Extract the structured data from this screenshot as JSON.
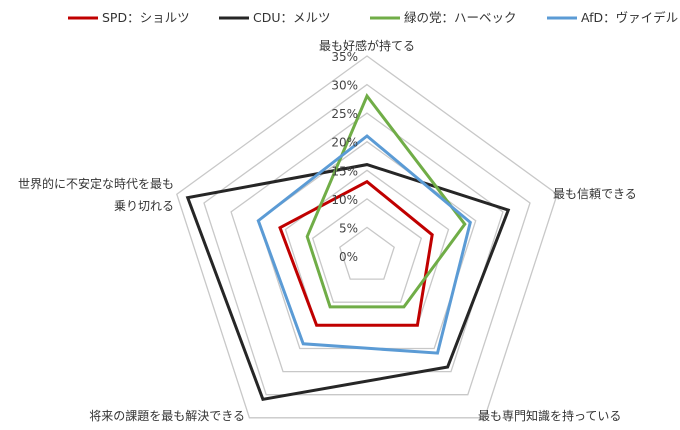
{
  "chart_data": {
    "type": "radar",
    "axes": [
      [
        "最も好感が持てる"
      ],
      [
        "最も信頼できる"
      ],
      [
        "最も専門知識を持っている"
      ],
      [
        "将来の課題を最も解決できる"
      ],
      [
        "世界的に不安定な時代を最も",
        "乗り切れる"
      ]
    ],
    "rlim": [
      0,
      35
    ],
    "ticks": [
      "0%",
      "5%",
      "10%",
      "15%",
      "20%",
      "25%",
      "30%",
      "35%"
    ],
    "tick_values": [
      0,
      5,
      10,
      15,
      20,
      25,
      30,
      35
    ],
    "grid": true,
    "legend_position": "top",
    "series": [
      {
        "name": "SPD：ショルツ",
        "color": "#c00000",
        "values": [
          13,
          12,
          15,
          15,
          16
        ]
      },
      {
        "name": "CDU：メルツ",
        "color": "#262626",
        "values": [
          16,
          26,
          24,
          31,
          33
        ]
      },
      {
        "name": "緑の党：ハーベック",
        "color": "#70ad47",
        "values": [
          28,
          18,
          11,
          11,
          11
        ]
      },
      {
        "name": "AfD：ヴァイデル",
        "color": "#5b9bd5",
        "values": [
          21,
          19,
          21,
          19,
          20
        ]
      }
    ]
  }
}
